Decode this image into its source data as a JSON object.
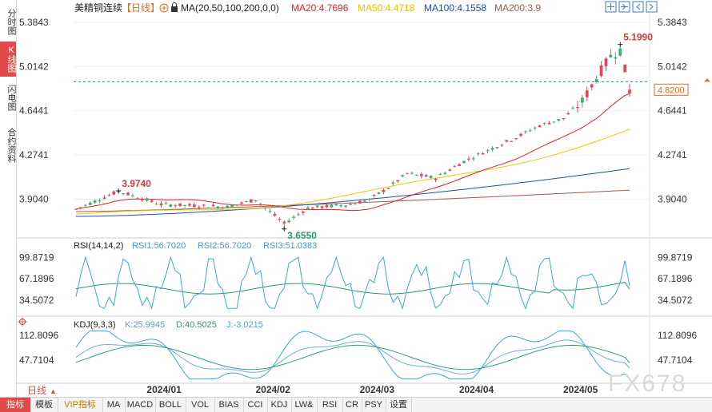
{
  "sidebar": {
    "tabs": [
      {
        "label": "分时图",
        "active": false
      },
      {
        "label": "K线图",
        "active": true
      },
      {
        "label": "闪电图",
        "active": false
      },
      {
        "label": "合约资料",
        "active": false
      }
    ]
  },
  "header": {
    "title": "美精铜连续",
    "period": "【日线】",
    "ma_label": "MA(20,50,100,200,0,0)",
    "ma20": "MA20:4.7696",
    "ma50": "MA50:4.4718",
    "ma100": "MA100:4.1558",
    "ma200": "MA200:3.9"
  },
  "rsi_header": {
    "label": "RSI(14,14,2)",
    "rsi1": "RSI1:56.7020",
    "rsi2": "RSI2:56.7020",
    "rsi3": "RSI3:51.0383"
  },
  "kdj_header": {
    "label": "KDJ(9,3,3)",
    "k": "K:25.9945",
    "d": "D:40.5025",
    "j": "J:-3.0215"
  },
  "period_selector": {
    "label": "日线",
    "arrow": "▲"
  },
  "watermark": "FX678",
  "bottom_tabs": [
    "指标",
    "模板",
    "VIP指标",
    "MA",
    "MACD",
    "BOLL",
    "VOL",
    "BIAS",
    "CCI",
    "KDJ",
    "LW&",
    "RSI",
    "CR",
    "PSY",
    "设置"
  ],
  "colors": {
    "up": "#e8445a",
    "down": "#3bb06a",
    "ma20": "#e02424",
    "ma50": "#f5c400",
    "ma100": "#1f4ea8",
    "ma200": "#9b5b50",
    "rsi1": "#3aa8d8",
    "rsi2": "#3aa8d8",
    "rsi3": "#2a9a6a",
    "k": "#6ab0d8",
    "d": "#2aa070",
    "j": "#3aa8d8"
  },
  "icons": [
    "zoom-in-icon",
    "zoom-out-icon",
    "move-left-icon",
    "move-right-icon",
    "settings-icon",
    "crosshair-icon",
    "refresh-icon"
  ],
  "chart_data": {
    "type": "candlestick",
    "title": "美精铜连续【日线】",
    "x_ticks": [
      "2024/01",
      "2024/02",
      "2024/03",
      "2024/04",
      "2024/05"
    ],
    "x_tick_index": [
      18,
      41,
      63,
      84,
      106
    ],
    "main": {
      "ylim": [
        3.62,
        5.45
      ],
      "y_ticks": [
        "5.3843",
        "5.0142",
        "4.6441",
        "4.2741",
        "3.9040"
      ],
      "y_tick_values": [
        5.3843,
        5.0142,
        4.6441,
        4.2741,
        3.904
      ],
      "current_price": "4.8200",
      "current_price_value": 4.82,
      "annotations": [
        {
          "text": "3.9740",
          "index": 9,
          "value": 3.974,
          "color": "#d63a3a"
        },
        {
          "text": "3.6550",
          "index": 44,
          "value": 3.655,
          "color": "#2a9a6a"
        },
        {
          "text": "5.1990",
          "index": 115,
          "value": 5.199,
          "color": "#d63a3a"
        }
      ],
      "candles_ohlc": [],
      "ma_series": [
        {
          "name": "MA20",
          "value": 4.7696
        },
        {
          "name": "MA50",
          "value": 4.4718
        },
        {
          "name": "MA100",
          "value": 4.1558
        },
        {
          "name": "MA200",
          "value": 3.9
        }
      ]
    },
    "rsi": {
      "ylim": [
        15,
        110
      ],
      "y_ticks": [
        "99.8719",
        "67.1896",
        "34.5072"
      ],
      "y_tick_values": [
        99.8719,
        67.1896,
        34.5072
      ],
      "last": {
        "rsi1": 56.702,
        "rsi2": 56.702,
        "rsi3": 51.0383
      }
    },
    "kdj": {
      "ylim": [
        -5,
        130
      ],
      "y_ticks": [
        "112.8096",
        "47.7104"
      ],
      "y_tick_values": [
        112.8096,
        47.7104
      ],
      "last": {
        "k": 25.9945,
        "d": 40.5025,
        "j": -3.0215
      }
    }
  }
}
